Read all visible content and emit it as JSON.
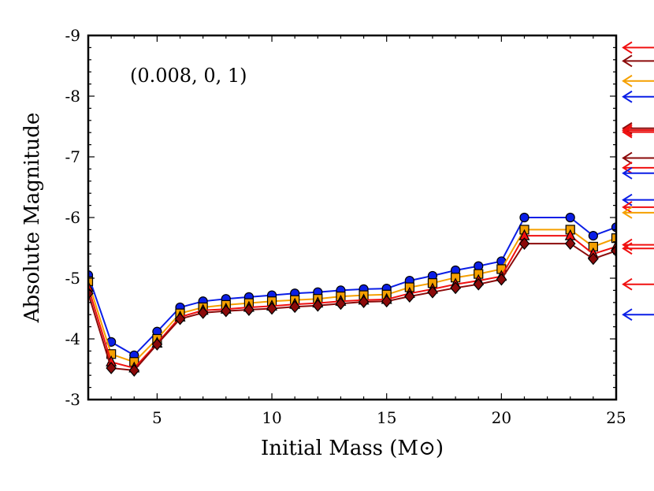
{
  "chart_data": {
    "type": "line",
    "xlabel": "Initial Mass (M⊙)",
    "ylabel": "Absolute Magnitude",
    "annotation": "(0.008, 0, 1)",
    "xlim": [
      2,
      25
    ],
    "ylim": [
      -3,
      -9
    ],
    "x_ticks": [
      5,
      10,
      15,
      20,
      25
    ],
    "y_ticks": [
      -3,
      -4,
      -5,
      -6,
      -7,
      -8,
      -9
    ],
    "x_tick_labels": [
      "5",
      "10",
      "15",
      "20",
      "25"
    ],
    "y_tick_labels": [
      "-3",
      "-4",
      "-5",
      "-6",
      "-7",
      "-8",
      "-9"
    ],
    "x": [
      2,
      3,
      4,
      5,
      6,
      7,
      8,
      9,
      10,
      11,
      12,
      13,
      14,
      15,
      16,
      17,
      18,
      19,
      20,
      21,
      23,
      24,
      25
    ],
    "series": [
      {
        "name": "blue-circles",
        "color": "#0a1ee6",
        "marker": "circle",
        "values": [
          -5.05,
          -3.95,
          -3.73,
          -4.12,
          -4.52,
          -4.62,
          -4.66,
          -4.69,
          -4.72,
          -4.75,
          -4.77,
          -4.8,
          -4.82,
          -4.83,
          -4.96,
          -5.04,
          -5.13,
          -5.2,
          -5.28,
          -6.0,
          -6.0,
          -5.7,
          -5.84
        ]
      },
      {
        "name": "orange-squares",
        "color": "#f5a000",
        "marker": "square",
        "values": [
          -4.95,
          -3.75,
          -3.62,
          -4.0,
          -4.42,
          -4.52,
          -4.56,
          -4.59,
          -4.62,
          -4.64,
          -4.66,
          -4.7,
          -4.72,
          -4.73,
          -4.85,
          -4.92,
          -5.01,
          -5.07,
          -5.15,
          -5.8,
          -5.8,
          -5.52,
          -5.66
        ]
      },
      {
        "name": "red-triangles",
        "color": "#f01010",
        "marker": "triangle",
        "values": [
          -4.85,
          -3.62,
          -3.52,
          -3.93,
          -4.36,
          -4.47,
          -4.49,
          -4.52,
          -4.54,
          -4.57,
          -4.59,
          -4.62,
          -4.64,
          -4.65,
          -4.75,
          -4.82,
          -4.9,
          -4.96,
          -5.03,
          -5.7,
          -5.7,
          -5.4,
          -5.52
        ]
      },
      {
        "name": "darkred-diamonds",
        "color": "#8b0a0a",
        "marker": "diamond",
        "values": [
          -4.75,
          -3.52,
          -3.48,
          -3.91,
          -4.33,
          -4.43,
          -4.46,
          -4.48,
          -4.5,
          -4.53,
          -4.55,
          -4.58,
          -4.61,
          -4.62,
          -4.7,
          -4.77,
          -4.84,
          -4.9,
          -4.98,
          -5.57,
          -5.57,
          -5.32,
          -5.45
        ]
      }
    ],
    "arrows": [
      {
        "y": -8.8,
        "color": "#f01010",
        "count": 1
      },
      {
        "y": -8.58,
        "color": "#8b0a0a",
        "count": 1
      },
      {
        "y": -8.25,
        "color": "#f5a000",
        "count": 1
      },
      {
        "y": -7.99,
        "color": "#0a1ee6",
        "count": 1
      },
      {
        "y": -7.47,
        "color": "#8b0a0a",
        "count": 2
      },
      {
        "y": -7.44,
        "color": "#f01010",
        "count": 2
      },
      {
        "y": -6.98,
        "color": "#8b0a0a",
        "count": 1
      },
      {
        "y": -6.82,
        "color": "#f01010",
        "count": 1
      },
      {
        "y": -6.73,
        "color": "#0a1ee6",
        "count": 1
      },
      {
        "y": -6.29,
        "color": "#0a1ee6",
        "count": 1
      },
      {
        "y": -6.17,
        "color": "#f01010",
        "count": 1
      },
      {
        "y": -6.08,
        "color": "#f5a000",
        "count": 1
      },
      {
        "y": -5.55,
        "color": "#f01010",
        "count": 1
      },
      {
        "y": -5.49,
        "color": "#f01010",
        "count": 1
      },
      {
        "y": -4.9,
        "color": "#f01010",
        "count": 1
      },
      {
        "y": -4.4,
        "color": "#0a1ee6",
        "count": 1
      }
    ]
  }
}
